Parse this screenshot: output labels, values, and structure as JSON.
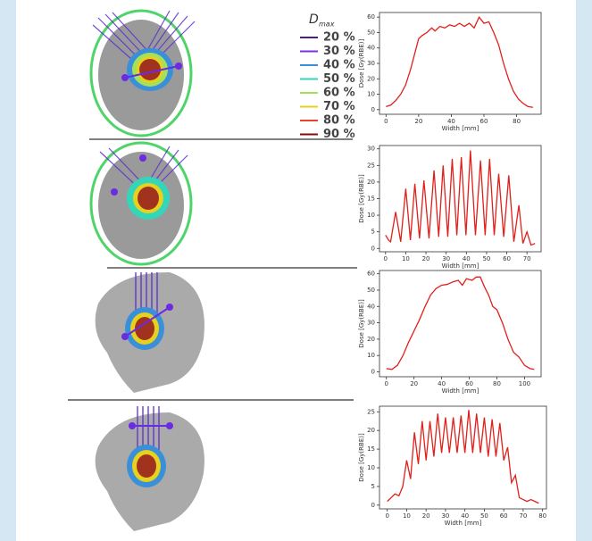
{
  "legend": {
    "title": "D",
    "title_sub": "max",
    "items": [
      {
        "label": "20 %",
        "color": "#4b1c8c"
      },
      {
        "label": "30 %",
        "color": "#7b2fe0"
      },
      {
        "label": "40 %",
        "color": "#3a8fd9"
      },
      {
        "label": "50 %",
        "color": "#33d6b8"
      },
      {
        "label": "60 %",
        "color": "#a6e05a"
      },
      {
        "label": "70 %",
        "color": "#e6d21e"
      },
      {
        "label": "80 %",
        "color": "#e8442c"
      },
      {
        "label": "90 %",
        "color": "#8b0a0a"
      }
    ]
  },
  "chart_data": [
    {
      "type": "line",
      "xlabel": "Width [mm]",
      "ylabel": "Dose [Gy(RBE)]",
      "color": "#e0201b",
      "x": [
        0,
        3,
        6,
        9,
        12,
        15,
        18,
        20,
        22,
        25,
        28,
        30,
        33,
        36,
        39,
        42,
        45,
        48,
        51,
        54,
        57,
        60,
        63,
        66,
        69,
        72,
        75,
        78,
        81,
        84,
        87,
        90
      ],
      "values": [
        2,
        3,
        6,
        10,
        16,
        26,
        38,
        46,
        48,
        50,
        53,
        51,
        54,
        53,
        55,
        54,
        56,
        54,
        56,
        53,
        60,
        56,
        57,
        50,
        42,
        30,
        20,
        12,
        7,
        4,
        2,
        1.5
      ],
      "xlim": [
        -4,
        95
      ],
      "ylim": [
        -3,
        63
      ],
      "xticks": [
        0,
        20,
        40,
        60,
        80
      ],
      "yticks": [
        0,
        10,
        20,
        30,
        40,
        50,
        60
      ]
    },
    {
      "type": "line",
      "xlabel": "Width [mm]",
      "ylabel": "Dose [Gy(RBE)]",
      "color": "#e0201b",
      "x": [
        0,
        1.5,
        2.5,
        5,
        7.5,
        10,
        12.3,
        14.5,
        16.8,
        19,
        21.5,
        24,
        26.3,
        28.5,
        30.8,
        33,
        35.3,
        37.5,
        39.8,
        42,
        44.5,
        47,
        49.3,
        51.5,
        53.8,
        56,
        58.5,
        61,
        63.5,
        66,
        68,
        70,
        72,
        74
      ],
      "values": [
        4,
        2.5,
        2,
        11,
        2,
        18,
        2.5,
        19.5,
        3,
        20.5,
        3,
        23.5,
        3.5,
        25,
        3.5,
        27,
        4,
        27.5,
        4,
        29.5,
        4,
        26.5,
        4,
        27,
        4,
        22.5,
        3.5,
        22,
        2,
        13,
        1.5,
        5,
        1,
        1.5
      ],
      "xlim": [
        -3,
        77
      ],
      "ylim": [
        -1,
        31
      ],
      "xticks": [
        0,
        10,
        20,
        30,
        40,
        50,
        60,
        70
      ],
      "yticks": [
        0,
        5,
        10,
        15,
        20,
        25,
        30
      ]
    },
    {
      "type": "line",
      "xlabel": "Width [mm]",
      "ylabel": "Dose [Gy(RBE)]",
      "color": "#e0201b",
      "x": [
        0,
        4,
        8,
        12,
        16,
        20,
        24,
        28,
        32,
        36,
        40,
        44,
        48,
        52,
        55,
        58,
        62,
        65,
        68,
        71,
        74,
        77,
        80,
        84,
        88,
        92,
        96,
        100,
        104,
        107
      ],
      "values": [
        2,
        1.5,
        4,
        10,
        18,
        25,
        32,
        40,
        47,
        51,
        53,
        53.5,
        55,
        56,
        53,
        57,
        56,
        58,
        58,
        52,
        47,
        40,
        38,
        30,
        20,
        12,
        9,
        4,
        2,
        1.5
      ],
      "xlim": [
        -5,
        112
      ],
      "ylim": [
        -3,
        62
      ],
      "xticks": [
        0,
        20,
        40,
        60,
        80,
        100
      ],
      "yticks": [
        0,
        10,
        20,
        30,
        40,
        50,
        60
      ]
    },
    {
      "type": "line",
      "xlabel": "Width [mm]",
      "ylabel": "Dose [Gy(RBE)]",
      "color": "#e0201b",
      "x": [
        0,
        2,
        4,
        6,
        8,
        10,
        12,
        14,
        16,
        18,
        20,
        22,
        24,
        26,
        28,
        30,
        32,
        34,
        36,
        38,
        40,
        42,
        44,
        46,
        48,
        50,
        52,
        54,
        56,
        58,
        60,
        62,
        64,
        66,
        68,
        70,
        72,
        74,
        76,
        78
      ],
      "values": [
        1,
        2,
        3,
        2.5,
        5,
        12,
        7,
        19.5,
        11,
        22.5,
        12,
        22.5,
        13,
        24.5,
        14,
        23.5,
        14,
        23.5,
        14,
        24,
        14,
        25.5,
        14,
        24.5,
        14,
        23.5,
        13,
        23,
        13,
        22,
        12,
        15.5,
        6,
        8,
        2,
        1.5,
        1,
        1.5,
        1,
        0.5
      ],
      "xlim": [
        -4,
        82
      ],
      "ylim": [
        -1,
        26.5
      ],
      "xticks": [
        0,
        10,
        20,
        30,
        40,
        50,
        60,
        70,
        80
      ],
      "yticks": [
        0,
        5,
        10,
        15,
        20,
        25
      ]
    }
  ]
}
